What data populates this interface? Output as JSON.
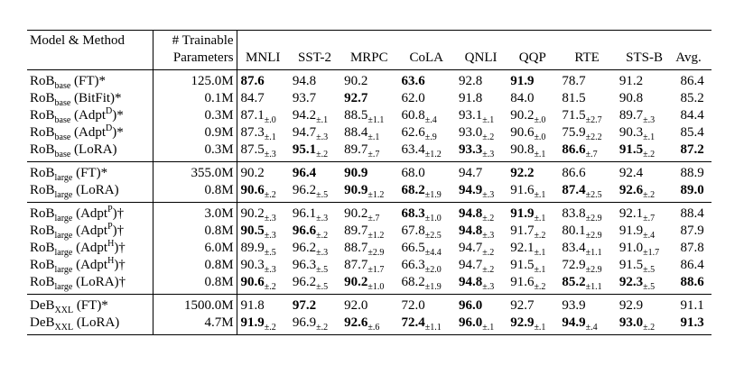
{
  "table": {
    "header": {
      "model": "Model & Method",
      "params": [
        "# Trainable",
        "Parameters"
      ],
      "columns": [
        "MNLI",
        "SST-2",
        "MRPC",
        "CoLA",
        "QNLI",
        "QQP",
        "RTE",
        "STS-B",
        "Avg."
      ]
    },
    "groups": [
      {
        "rows": [
          {
            "model": [
              {
                "text": "RoB"
              },
              {
                "text": "base",
                "style": "sub"
              },
              {
                "text": " (FT)*"
              }
            ],
            "params": "125.0M",
            "cells": [
              {
                "value": "87.6",
                "bold": true
              },
              {
                "value": "94.8"
              },
              {
                "value": "90.2"
              },
              {
                "value": "63.6",
                "bold": true
              },
              {
                "value": "92.8"
              },
              {
                "value": "91.9",
                "bold": true
              },
              {
                "value": "78.7"
              },
              {
                "value": "91.2"
              },
              {
                "value": "86.4"
              }
            ]
          },
          {
            "model": [
              {
                "text": "RoB"
              },
              {
                "text": "base",
                "style": "sub"
              },
              {
                "text": " (BitFit)*"
              }
            ],
            "params": "0.1M",
            "cells": [
              {
                "value": "84.7"
              },
              {
                "value": "93.7"
              },
              {
                "value": "92.7",
                "bold": true
              },
              {
                "value": "62.0"
              },
              {
                "value": "91.8"
              },
              {
                "value": "84.0"
              },
              {
                "value": "81.5"
              },
              {
                "value": "90.8"
              },
              {
                "value": "85.2"
              }
            ]
          },
          {
            "model": [
              {
                "text": "RoB"
              },
              {
                "text": "base",
                "style": "sub"
              },
              {
                "text": " (Adpt"
              },
              {
                "text": "D",
                "style": "sup"
              },
              {
                "text": ")*"
              }
            ],
            "params": "0.3M",
            "cells": [
              {
                "value": "87.1",
                "error": "±.0"
              },
              {
                "value": "94.2",
                "error": "±.1"
              },
              {
                "value": "88.5",
                "error": "±1.1"
              },
              {
                "value": "60.8",
                "error": "±.4"
              },
              {
                "value": "93.1",
                "error": "±.1"
              },
              {
                "value": "90.2",
                "error": "±.0"
              },
              {
                "value": "71.5",
                "error": "±2.7"
              },
              {
                "value": "89.7",
                "error": "±.3"
              },
              {
                "value": "84.4"
              }
            ]
          },
          {
            "model": [
              {
                "text": "RoB"
              },
              {
                "text": "base",
                "style": "sub"
              },
              {
                "text": " (Adpt"
              },
              {
                "text": "D",
                "style": "sup"
              },
              {
                "text": ")*"
              }
            ],
            "params": "0.9M",
            "cells": [
              {
                "value": "87.3",
                "error": "±.1"
              },
              {
                "value": "94.7",
                "error": "±.3"
              },
              {
                "value": "88.4",
                "error": "±.1"
              },
              {
                "value": "62.6",
                "error": "±.9"
              },
              {
                "value": "93.0",
                "error": "±.2"
              },
              {
                "value": "90.6",
                "error": "±.0"
              },
              {
                "value": "75.9",
                "error": "±2.2"
              },
              {
                "value": "90.3",
                "error": "±.1"
              },
              {
                "value": "85.4"
              }
            ]
          },
          {
            "model": [
              {
                "text": "RoB"
              },
              {
                "text": "base",
                "style": "sub"
              },
              {
                "text": " (LoRA)"
              }
            ],
            "params": "0.3M",
            "cells": [
              {
                "value": "87.5",
                "error": "±.3"
              },
              {
                "value": "95.1",
                "error": "±.2",
                "bold": true
              },
              {
                "value": "89.7",
                "error": "±.7"
              },
              {
                "value": "63.4",
                "error": "±1.2"
              },
              {
                "value": "93.3",
                "error": "±.3",
                "bold": true
              },
              {
                "value": "90.8",
                "error": "±.1"
              },
              {
                "value": "86.6",
                "error": "±.7",
                "bold": true
              },
              {
                "value": "91.5",
                "error": "±.2",
                "bold": true
              },
              {
                "value": "87.2",
                "bold": true
              }
            ]
          }
        ]
      },
      {
        "rows": [
          {
            "model": [
              {
                "text": "RoB"
              },
              {
                "text": "large",
                "style": "sub"
              },
              {
                "text": " (FT)*"
              }
            ],
            "params": "355.0M",
            "cells": [
              {
                "value": "90.2"
              },
              {
                "value": "96.4",
                "bold": true
              },
              {
                "value": "90.9",
                "bold": true
              },
              {
                "value": "68.0"
              },
              {
                "value": "94.7"
              },
              {
                "value": "92.2",
                "bold": true
              },
              {
                "value": "86.6"
              },
              {
                "value": "92.4"
              },
              {
                "value": "88.9"
              }
            ]
          },
          {
            "model": [
              {
                "text": "RoB"
              },
              {
                "text": "large",
                "style": "sub"
              },
              {
                "text": " (LoRA)"
              }
            ],
            "params": "0.8M",
            "cells": [
              {
                "value": "90.6",
                "error": "±.2",
                "bold": true
              },
              {
                "value": "96.2",
                "error": "±.5"
              },
              {
                "value": "90.9",
                "error": "±1.2",
                "bold": true
              },
              {
                "value": "68.2",
                "error": "±1.9",
                "bold": true
              },
              {
                "value": "94.9",
                "error": "±.3",
                "bold": true
              },
              {
                "value": "91.6",
                "error": "±.1"
              },
              {
                "value": "87.4",
                "error": "±2.5",
                "bold": true
              },
              {
                "value": "92.6",
                "error": "±.2",
                "bold": true
              },
              {
                "value": "89.0",
                "bold": true
              }
            ]
          }
        ]
      },
      {
        "rows": [
          {
            "model": [
              {
                "text": "RoB"
              },
              {
                "text": "large",
                "style": "sub"
              },
              {
                "text": " (Adpt"
              },
              {
                "text": "P",
                "style": "sup"
              },
              {
                "text": ")†"
              }
            ],
            "params": "3.0M",
            "cells": [
              {
                "value": "90.2",
                "error": "±.3"
              },
              {
                "value": "96.1",
                "error": "±.3"
              },
              {
                "value": "90.2",
                "error": "±.7"
              },
              {
                "value": "68.3",
                "error": "±1.0",
                "bold": true
              },
              {
                "value": "94.8",
                "error": "±.2",
                "bold": true
              },
              {
                "value": "91.9",
                "error": "±.1",
                "bold": true
              },
              {
                "value": "83.8",
                "error": "±2.9"
              },
              {
                "value": "92.1",
                "error": "±.7"
              },
              {
                "value": "88.4"
              }
            ]
          },
          {
            "model": [
              {
                "text": "RoB"
              },
              {
                "text": "large",
                "style": "sub"
              },
              {
                "text": " (Adpt"
              },
              {
                "text": "P",
                "style": "sup"
              },
              {
                "text": ")†"
              }
            ],
            "params": "0.8M",
            "cells": [
              {
                "value": "90.5",
                "error": "±.3",
                "bold": true
              },
              {
                "value": "96.6",
                "error": "±.2",
                "bold": true
              },
              {
                "value": "89.7",
                "error": "±1.2"
              },
              {
                "value": "67.8",
                "error": "±2.5"
              },
              {
                "value": "94.8",
                "error": "±.3",
                "bold": true
              },
              {
                "value": "91.7",
                "error": "±.2"
              },
              {
                "value": "80.1",
                "error": "±2.9"
              },
              {
                "value": "91.9",
                "error": "±.4"
              },
              {
                "value": "87.9"
              }
            ]
          },
          {
            "model": [
              {
                "text": "RoB"
              },
              {
                "text": "large",
                "style": "sub"
              },
              {
                "text": " (Adpt"
              },
              {
                "text": "H",
                "style": "sup"
              },
              {
                "text": ")†"
              }
            ],
            "params": "6.0M",
            "cells": [
              {
                "value": "89.9",
                "error": "±.5"
              },
              {
                "value": "96.2",
                "error": "±.3"
              },
              {
                "value": "88.7",
                "error": "±2.9"
              },
              {
                "value": "66.5",
                "error": "±4.4"
              },
              {
                "value": "94.7",
                "error": "±.2"
              },
              {
                "value": "92.1",
                "error": "±.1"
              },
              {
                "value": "83.4",
                "error": "±1.1"
              },
              {
                "value": "91.0",
                "error": "±1.7"
              },
              {
                "value": "87.8"
              }
            ]
          },
          {
            "model": [
              {
                "text": "RoB"
              },
              {
                "text": "large",
                "style": "sub"
              },
              {
                "text": " (Adpt"
              },
              {
                "text": "H",
                "style": "sup"
              },
              {
                "text": ")†"
              }
            ],
            "params": "0.8M",
            "cells": [
              {
                "value": "90.3",
                "error": "±.3"
              },
              {
                "value": "96.3",
                "error": "±.5"
              },
              {
                "value": "87.7",
                "error": "±1.7"
              },
              {
                "value": "66.3",
                "error": "±2.0"
              },
              {
                "value": "94.7",
                "error": "±.2"
              },
              {
                "value": "91.5",
                "error": "±.1"
              },
              {
                "value": "72.9",
                "error": "±2.9"
              },
              {
                "value": "91.5",
                "error": "±.5"
              },
              {
                "value": "86.4"
              }
            ]
          },
          {
            "model": [
              {
                "text": "RoB"
              },
              {
                "text": "large",
                "style": "sub"
              },
              {
                "text": " (LoRA)†"
              }
            ],
            "params": "0.8M",
            "cells": [
              {
                "value": "90.6",
                "error": "±.2",
                "bold": true
              },
              {
                "value": "96.2",
                "error": "±.5"
              },
              {
                "value": "90.2",
                "error": "±1.0",
                "bold": true
              },
              {
                "value": "68.2",
                "error": "±1.9"
              },
              {
                "value": "94.8",
                "error": "±.3",
                "bold": true
              },
              {
                "value": "91.6",
                "error": "±.2"
              },
              {
                "value": "85.2",
                "error": "±1.1",
                "bold": true
              },
              {
                "value": "92.3",
                "error": "±.5",
                "bold": true
              },
              {
                "value": "88.6",
                "bold": true
              }
            ]
          }
        ]
      },
      {
        "rows": [
          {
            "model": [
              {
                "text": "DeB"
              },
              {
                "text": "XXL",
                "style": "sub"
              },
              {
                "text": " (FT)*"
              }
            ],
            "params": "1500.0M",
            "cells": [
              {
                "value": "91.8"
              },
              {
                "value": "97.2",
                "bold": true
              },
              {
                "value": "92.0"
              },
              {
                "value": "72.0"
              },
              {
                "value": "96.0",
                "bold": true
              },
              {
                "value": "92.7"
              },
              {
                "value": "93.9"
              },
              {
                "value": "92.9"
              },
              {
                "value": "91.1"
              }
            ]
          },
          {
            "model": [
              {
                "text": "DeB"
              },
              {
                "text": "XXL",
                "style": "sub"
              },
              {
                "text": " (LoRA)"
              }
            ],
            "params": "4.7M",
            "cells": [
              {
                "value": "91.9",
                "error": "±.2",
                "bold": true
              },
              {
                "value": "96.9",
                "error": "±.2"
              },
              {
                "value": "92.6",
                "error": "±.6",
                "bold": true
              },
              {
                "value": "72.4",
                "error": "±1.1",
                "bold": true
              },
              {
                "value": "96.0",
                "error": "±.1",
                "bold": true
              },
              {
                "value": "92.9",
                "error": "±.1",
                "bold": true
              },
              {
                "value": "94.9",
                "error": "±.4",
                "bold": true
              },
              {
                "value": "93.0",
                "error": "±.2",
                "bold": true
              },
              {
                "value": "91.3",
                "bold": true
              }
            ]
          }
        ]
      }
    ]
  }
}
